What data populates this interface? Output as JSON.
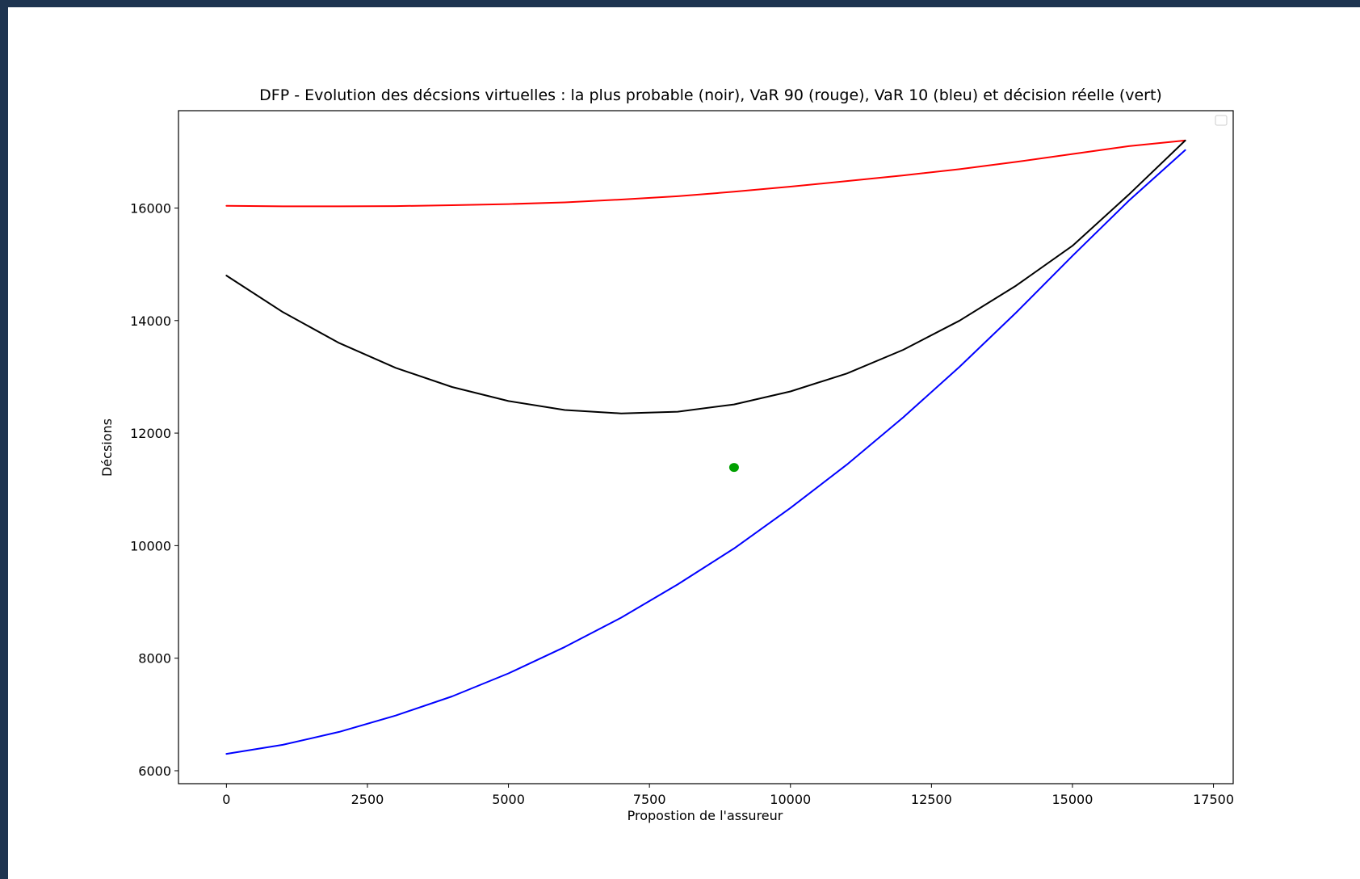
{
  "chart_data": {
    "type": "line",
    "title": "DFP - Evolution des décsions virtuelles : la plus probable (noir), VaR 90 (rouge), VaR 10 (bleu) et décision réelle (vert)",
    "xlabel": "Propostion de l'assureur",
    "ylabel": "Décsions",
    "xlim": [
      -850,
      17850
    ],
    "ylim": [
      5770,
      17730
    ],
    "xticks": [
      0,
      2500,
      5000,
      7500,
      10000,
      12500,
      15000,
      17500
    ],
    "yticks": [
      6000,
      8000,
      10000,
      12000,
      14000,
      16000
    ],
    "grid": false,
    "legend": "top-right (empty)",
    "x": [
      0,
      1000,
      2000,
      3000,
      4000,
      5000,
      6000,
      7000,
      8000,
      9000,
      10000,
      11000,
      12000,
      13000,
      14000,
      15000,
      16000,
      17000
    ],
    "series": [
      {
        "color": "#ff0000",
        "values": [
          16040,
          16030,
          16030,
          16035,
          16050,
          16070,
          16100,
          16150,
          16210,
          16290,
          16380,
          16480,
          16580,
          16690,
          16820,
          16960,
          17100,
          17200
        ]
      },
      {
        "color": "#000000",
        "values": [
          14800,
          14150,
          13600,
          13160,
          12820,
          12570,
          12410,
          12350,
          12380,
          12510,
          12740,
          13060,
          13480,
          14000,
          14620,
          15330,
          16240,
          17200
        ]
      },
      {
        "color": "#0000ff",
        "values": [
          6300,
          6460,
          6690,
          6980,
          7320,
          7730,
          8200,
          8720,
          9310,
          9950,
          10670,
          11440,
          12280,
          13180,
          14140,
          15150,
          16130,
          17030
        ]
      }
    ],
    "points": [
      {
        "x": 9000,
        "y": 11390,
        "color": "#00a000"
      }
    ]
  }
}
